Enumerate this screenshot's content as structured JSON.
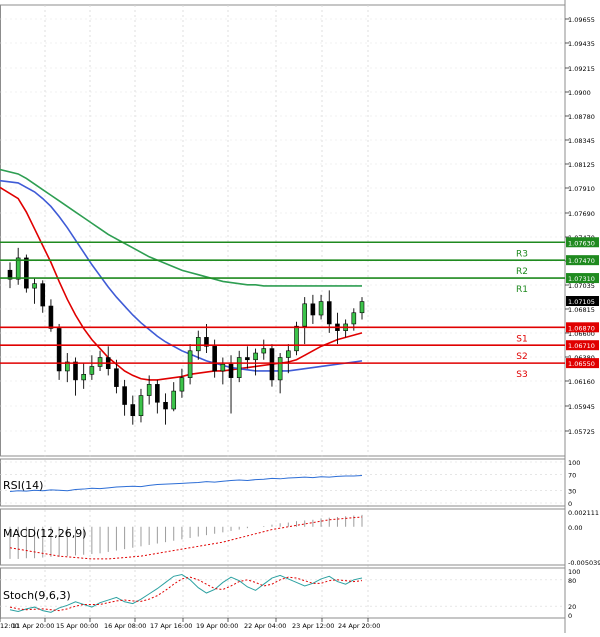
{
  "instrument_chart": {
    "price_axis_ticks": [
      "1.09655",
      "1.09435",
      "1.09215",
      "1.0900",
      "1.08780",
      "1.08345",
      "1.08125",
      "1.07910",
      "1.07690",
      "1.07470",
      "1.07255",
      "1.07035",
      "1.06815",
      "1.06600",
      "1.06380",
      "1.06160",
      "1.05945",
      "1.05725"
    ],
    "current_price": "1.07105",
    "levels": [
      {
        "name": "R3",
        "value": "1.07630",
        "kind": "resistance",
        "color": "#1f8a1f"
      },
      {
        "name": "R2",
        "value": "1.07470",
        "kind": "resistance",
        "color": "#1f8a1f"
      },
      {
        "name": "R1",
        "value": "1.07310",
        "kind": "resistance",
        "color": "#1f8a1f"
      },
      {
        "name": "S1",
        "value": "1.06870",
        "kind": "support",
        "color": "#e00000"
      },
      {
        "name": "S2",
        "value": "1.06710",
        "kind": "support",
        "color": "#e00000"
      },
      {
        "name": "S3",
        "value": "1.06550",
        "kind": "support",
        "color": "#e00000"
      }
    ],
    "time_axis_labels": [
      "12:00",
      "11 Apr 20:00",
      "15 Apr 00:00",
      "16 Apr 08:00",
      "17 Apr 16:00",
      "19 Apr 00:00",
      "22 Apr 04:00",
      "23 Apr 12:00",
      "24 Apr 20:00"
    ]
  },
  "chart_data": {
    "type": "candlestick",
    "ylim": [
      1.0572,
      1.0975
    ],
    "candles": [
      [
        1.0738,
        1.0745,
        1.0722,
        1.073
      ],
      [
        1.073,
        1.0758,
        1.0725,
        1.0749
      ],
      [
        1.0749,
        1.0752,
        1.0718,
        1.0722
      ],
      [
        1.0722,
        1.0731,
        1.0708,
        1.0726
      ],
      [
        1.0726,
        1.0729,
        1.07,
        1.0706
      ],
      [
        1.0706,
        1.0712,
        1.0683,
        1.0686
      ],
      [
        1.0686,
        1.069,
        1.064,
        1.0648
      ],
      [
        1.0648,
        1.0664,
        1.0638,
        1.0656
      ],
      [
        1.0656,
        1.066,
        1.0626,
        1.064
      ],
      [
        1.064,
        1.0655,
        1.0632,
        1.0645
      ],
      [
        1.0645,
        1.0662,
        1.064,
        1.0652
      ],
      [
        1.0652,
        1.0666,
        1.0648,
        1.066
      ],
      [
        1.066,
        1.067,
        1.0644,
        1.065
      ],
      [
        1.065,
        1.0658,
        1.0628,
        1.0634
      ],
      [
        1.0634,
        1.064,
        1.0608,
        1.0618
      ],
      [
        1.0618,
        1.0626,
        1.06,
        1.0608
      ],
      [
        1.0608,
        1.0632,
        1.0602,
        1.0626
      ],
      [
        1.0626,
        1.0644,
        1.0618,
        1.0636
      ],
      [
        1.0636,
        1.064,
        1.061,
        1.062
      ],
      [
        1.062,
        1.0628,
        1.06,
        1.0614
      ],
      [
        1.0614,
        1.0638,
        1.0612,
        1.063
      ],
      [
        1.063,
        1.065,
        1.0624,
        1.0642
      ],
      [
        1.0642,
        1.0672,
        1.0636,
        1.0666
      ],
      [
        1.0666,
        1.0684,
        1.0658,
        1.0678
      ],
      [
        1.0678,
        1.069,
        1.0664,
        1.067
      ],
      [
        1.067,
        1.0676,
        1.0642,
        1.0648
      ],
      [
        1.0648,
        1.066,
        1.0636,
        1.0654
      ],
      [
        1.0654,
        1.0662,
        1.061,
        1.0642
      ],
      [
        1.0642,
        1.0666,
        1.0638,
        1.066
      ],
      [
        1.066,
        1.067,
        1.065,
        1.0658
      ],
      [
        1.0658,
        1.0668,
        1.0644,
        1.0664
      ],
      [
        1.0664,
        1.0676,
        1.0658,
        1.0668
      ],
      [
        1.0668,
        1.0672,
        1.0634,
        1.064
      ],
      [
        1.064,
        1.0664,
        1.0628,
        1.066
      ],
      [
        1.066,
        1.0672,
        1.0646,
        1.0666
      ],
      [
        1.0666,
        1.0692,
        1.0662,
        1.0688
      ],
      [
        1.0688,
        1.0714,
        1.0672,
        1.0708
      ],
      [
        1.0708,
        1.0716,
        1.069,
        1.0698
      ],
      [
        1.0698,
        1.0716,
        1.0694,
        1.071
      ],
      [
        1.071,
        1.072,
        1.0682,
        1.069
      ],
      [
        1.069,
        1.07,
        1.0672,
        1.0684
      ],
      [
        1.0684,
        1.0694,
        1.0678,
        1.069
      ],
      [
        1.069,
        1.0704,
        1.0684,
        1.07
      ],
      [
        1.07,
        1.0714,
        1.0694,
        1.071
      ]
    ],
    "moving_averages": [
      {
        "color": "#e00000",
        "values": [
          1.0812,
          1.0802,
          1.079,
          1.0775,
          1.076,
          1.0745,
          1.0728,
          1.0712,
          1.0698,
          1.0686,
          1.0676,
          1.0668,
          1.066,
          1.0654,
          1.0648,
          1.0644,
          1.0641,
          1.064,
          1.064,
          1.0641,
          1.0642,
          1.0643,
          1.0645,
          1.0646,
          1.0647,
          1.0648,
          1.0648,
          1.0649,
          1.065,
          1.0651,
          1.0652,
          1.0653,
          1.0654,
          1.0655,
          1.0656,
          1.0658,
          1.0662,
          1.0666,
          1.067,
          1.0673,
          1.0676,
          1.0678,
          1.068,
          1.0682
        ]
      },
      {
        "color": "#3f5bd6",
        "values": [
          1.0818,
          1.0816,
          1.0812,
          1.0808,
          1.0802,
          1.0795,
          1.0786,
          1.0776,
          1.0765,
          1.0754,
          1.0743,
          1.0733,
          1.0723,
          1.0714,
          1.0706,
          1.0698,
          1.0691,
          1.0685,
          1.0679,
          1.0674,
          1.067,
          1.0666,
          1.0663,
          1.066,
          1.0657,
          1.0655,
          1.0653,
          1.0651,
          1.065,
          1.0649,
          1.0648,
          1.0648,
          1.0648,
          1.0648,
          1.0648,
          1.0649,
          1.065,
          1.0651,
          1.0652,
          1.0653,
          1.0654,
          1.0655,
          1.0656,
          1.0657
        ]
      },
      {
        "color": "#2e9e52",
        "values": [
          1.0828,
          1.0824,
          1.082,
          1.0815,
          1.081,
          1.0805,
          1.08,
          1.0795,
          1.079,
          1.0785,
          1.078,
          1.0775,
          1.077,
          1.0766,
          1.0762,
          1.0758,
          1.0754,
          1.075,
          1.0747,
          1.0744,
          1.0741,
          1.0738,
          1.0736,
          1.0734,
          1.0732,
          1.073,
          1.0728,
          1.0727,
          1.0726,
          1.0725,
          1.0725,
          1.0724,
          1.0724,
          1.0724,
          1.0724,
          1.0724,
          1.0724,
          1.0724,
          1.0724,
          1.0724,
          1.0724,
          1.0724,
          1.0724,
          1.0724
        ]
      }
    ]
  },
  "rsi_panel": {
    "title": "RSI(14)",
    "axis_labels": [
      "100",
      "70",
      "30",
      "0"
    ],
    "values": [
      28,
      30,
      29,
      31,
      30,
      32,
      31,
      30,
      33,
      34,
      36,
      35,
      37,
      39,
      40,
      41,
      40,
      43,
      45,
      46,
      47,
      48,
      49,
      50,
      52,
      51,
      53,
      55,
      56,
      55,
      57,
      58,
      60,
      59,
      61,
      62,
      63,
      62,
      64,
      63,
      65,
      66,
      66,
      67
    ]
  },
  "macd_panel": {
    "title": "MACD(12,26,9)",
    "axis_labels": [
      "0.002111",
      "0.00",
      "-0.005039"
    ],
    "histogram": [
      -0.0046,
      -0.0046,
      -0.0045,
      -0.0045,
      -0.0044,
      -0.0043,
      -0.0043,
      -0.0042,
      -0.0041,
      -0.004,
      -0.0039,
      -0.0038,
      -0.0036,
      -0.0034,
      -0.0032,
      -0.003,
      -0.0028,
      -0.0026,
      -0.0024,
      -0.0022,
      -0.002,
      -0.0018,
      -0.0016,
      -0.0014,
      -0.0012,
      -0.001,
      -0.0008,
      -0.0006,
      -0.0004,
      -0.0002,
      0.0,
      0.0001,
      0.0003,
      0.0005,
      0.0006,
      0.0008,
      0.0009,
      0.001,
      0.0012,
      0.0013,
      0.0014,
      0.0015,
      0.0016,
      0.0017
    ],
    "signal": [
      -0.003,
      -0.0032,
      -0.0034,
      -0.0036,
      -0.0038,
      -0.004,
      -0.0042,
      -0.0043,
      -0.0044,
      -0.0045,
      -0.0046,
      -0.0046,
      -0.0046,
      -0.0045,
      -0.0044,
      -0.0043,
      -0.0042,
      -0.004,
      -0.0038,
      -0.0036,
      -0.0034,
      -0.0032,
      -0.003,
      -0.0028,
      -0.0026,
      -0.0024,
      -0.0022,
      -0.0019,
      -0.0016,
      -0.0013,
      -0.001,
      -0.0007,
      -0.0004,
      -0.0002,
      0.0,
      0.0002,
      0.0004,
      0.0006,
      0.0008,
      0.001,
      0.0011,
      0.0012,
      0.0013,
      0.0014
    ],
    "signal_color": "#e00000"
  },
  "stoch_panel": {
    "title": "Stoch(9,6,3)",
    "axis_labels": [
      "100",
      "80",
      "20",
      "0"
    ],
    "main": [
      12,
      8,
      14,
      18,
      10,
      6,
      16,
      22,
      30,
      24,
      18,
      28,
      34,
      40,
      30,
      26,
      36,
      48,
      60,
      74,
      88,
      92,
      80,
      62,
      50,
      58,
      74,
      86,
      78,
      64,
      56,
      70,
      84,
      90,
      82,
      74,
      66,
      72,
      82,
      88,
      76,
      70,
      80,
      84
    ],
    "signal": [
      18,
      14,
      12,
      13,
      14,
      12,
      10,
      14,
      20,
      24,
      24,
      24,
      28,
      32,
      34,
      32,
      31,
      36,
      44,
      56,
      70,
      82,
      86,
      80,
      70,
      60,
      58,
      66,
      76,
      80,
      74,
      66,
      70,
      80,
      86,
      84,
      78,
      72,
      72,
      78,
      80,
      78,
      76,
      78
    ],
    "main_color": "#2ca1a1",
    "signal_color": "#e00000"
  }
}
